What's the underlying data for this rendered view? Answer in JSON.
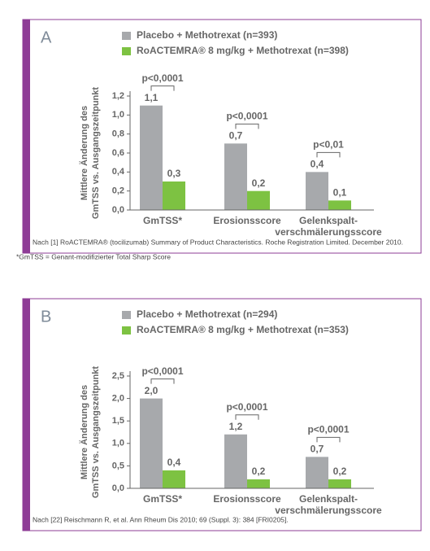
{
  "chart_data": [
    {
      "type": "bar",
      "panel": "A",
      "y_label": [
        "Mittlere Änderung des",
        "GmTSS vs. Ausgangszeitpunkt"
      ],
      "categories": [
        "GmTSS*",
        "Erosionsscore",
        "Gelenkspalt-\nverschmälerungsscore"
      ],
      "series": [
        {
          "name": "Placebo + Methotrexat (n=393)",
          "color": "#a7a9ac",
          "values": [
            1.1,
            0.7,
            0.4
          ],
          "value_labels": [
            "1,1",
            "0,7",
            "0,4"
          ]
        },
        {
          "name": "RoACTEMRA® 8 mg/kg + Methotrexat (n=398)",
          "color": "#7dc242",
          "values": [
            0.3,
            0.2,
            0.1
          ],
          "value_labels": [
            "0,3",
            "0,2",
            "0,1"
          ]
        }
      ],
      "significance": [
        "p<0,0001",
        "p<0,0001",
        "p<0,01"
      ],
      "ylim": [
        0,
        1.2
      ],
      "yticks": [
        {
          "value": 0,
          "label": "0,0"
        },
        {
          "value": 0.2,
          "label": "0,2"
        },
        {
          "value": 0.4,
          "label": "0,4"
        },
        {
          "value": 0.6,
          "label": "0,6"
        },
        {
          "value": 0.8,
          "label": "0,8"
        },
        {
          "value": 1.0,
          "label": "1,0"
        },
        {
          "value": 1.2,
          "label": "1,2"
        }
      ],
      "source": "Nach [1] RoACTEMRA® (tocilizumab) Summary of Product Characteristics. Roche Registration Limited. December 2010.",
      "note": "*GmTSS = Genant-modifizierter Total Sharp Score"
    },
    {
      "type": "bar",
      "panel": "B",
      "y_label": [
        "Mittlere Änderung des",
        "GmTSS vs. Ausgangszeitpunkt"
      ],
      "categories": [
        "GmTSS*",
        "Erosionsscore",
        "Gelenkspalt-\nverschmälerungsscore"
      ],
      "series": [
        {
          "name": "Placebo + Methotrexat (n=294)",
          "color": "#a7a9ac",
          "values": [
            2.0,
            1.2,
            0.7
          ],
          "value_labels": [
            "2,0",
            "1,2",
            "0,7"
          ]
        },
        {
          "name": "RoACTEMRA® 8 mg/kg + Methotrexat (n=353)",
          "color": "#7dc242",
          "values": [
            0.4,
            0.2,
            0.2
          ],
          "value_labels": [
            "0,4",
            "0,2",
            "0,2"
          ]
        }
      ],
      "significance": [
        "p<0,0001",
        "p<0,0001",
        "p<0,0001"
      ],
      "ylim": [
        0,
        2.5
      ],
      "yticks": [
        {
          "value": 0,
          "label": "0,0"
        },
        {
          "value": 0.5,
          "label": "0,5"
        },
        {
          "value": 1.0,
          "label": "1,0"
        },
        {
          "value": 1.5,
          "label": "1,5"
        },
        {
          "value": 2.0,
          "label": "2,0"
        },
        {
          "value": 2.5,
          "label": "2,5"
        }
      ],
      "source": "Nach [22] Reischmann R, et al. Ann Rheum Dis 2010; 69 (Suppl. 3): 384 [FRI0205]."
    }
  ]
}
